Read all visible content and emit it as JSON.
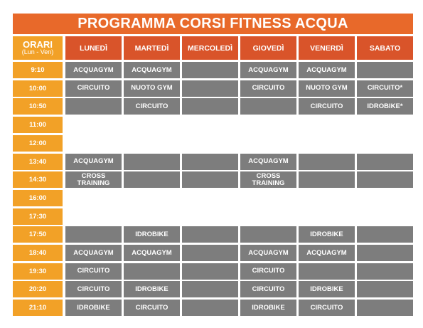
{
  "title": "PROGRAMMA CORSI FITNESS ACQUA",
  "header": {
    "orari": "ORARI",
    "orari_sub": "(Lun - Ven)",
    "days": [
      "LUNEDÌ",
      "MARTEDÌ",
      "MERCOLEDÌ",
      "GIOVEDÌ",
      "VENERDÌ",
      "SABATO"
    ]
  },
  "rows": [
    {
      "time": "9:10",
      "filled": true,
      "cells": [
        "ACQUAGYM",
        "ACQUAGYM",
        "",
        "ACQUAGYM",
        "ACQUAGYM",
        ""
      ]
    },
    {
      "time": "10:00",
      "filled": true,
      "cells": [
        "CIRCUITO",
        "NUOTO GYM",
        "",
        "CIRCUITO",
        "NUOTO GYM",
        "CIRCUITO*"
      ]
    },
    {
      "time": "10:50",
      "filled": true,
      "cells": [
        "",
        "CIRCUITO",
        "",
        "",
        "CIRCUITO",
        "IDROBIKE*"
      ]
    },
    {
      "time": "11:00",
      "filled": false,
      "cells": [
        "",
        "",
        "",
        "",
        "",
        ""
      ]
    },
    {
      "time": "12:00",
      "filled": false,
      "cells": [
        "",
        "",
        "",
        "",
        "",
        ""
      ]
    },
    {
      "time": "13:40",
      "filled": true,
      "cells": [
        "ACQUAGYM",
        "",
        "",
        "ACQUAGYM",
        "",
        ""
      ]
    },
    {
      "time": "14:30",
      "filled": true,
      "cells": [
        "CROSS\nTRAINING",
        "",
        "",
        "CROSS\nTRAINING",
        "",
        ""
      ]
    },
    {
      "time": "16:00",
      "filled": false,
      "cells": [
        "",
        "",
        "",
        "",
        "",
        ""
      ]
    },
    {
      "time": "17:30",
      "filled": false,
      "cells": [
        "",
        "",
        "",
        "",
        "",
        ""
      ]
    },
    {
      "time": "17:50",
      "filled": true,
      "cells": [
        "",
        "IDROBIKE",
        "",
        "",
        "IDROBIKE",
        ""
      ]
    },
    {
      "time": "18:40",
      "filled": true,
      "cells": [
        "ACQUAGYM",
        "ACQUAGYM",
        "",
        "ACQUAGYM",
        "ACQUAGYM",
        ""
      ]
    },
    {
      "time": "19:30",
      "filled": true,
      "cells": [
        "CIRCUITO",
        "",
        "",
        "CIRCUITO",
        "",
        ""
      ]
    },
    {
      "time": "20:20",
      "filled": true,
      "cells": [
        "CIRCUITO",
        "IDROBIKE",
        "",
        "CIRCUITO",
        "IDROBIKE",
        ""
      ]
    },
    {
      "time": "21:10",
      "filled": true,
      "cells": [
        "IDROBIKE",
        "CIRCUITO",
        "",
        "IDROBIKE",
        "CIRCUITO",
        ""
      ]
    }
  ],
  "colors": {
    "title_bg": "#e8692a",
    "day_header_bg": "#d9542a",
    "time_bg": "#f2a127",
    "slot_bg": "#7d7d7d",
    "text": "#ffffff"
  }
}
